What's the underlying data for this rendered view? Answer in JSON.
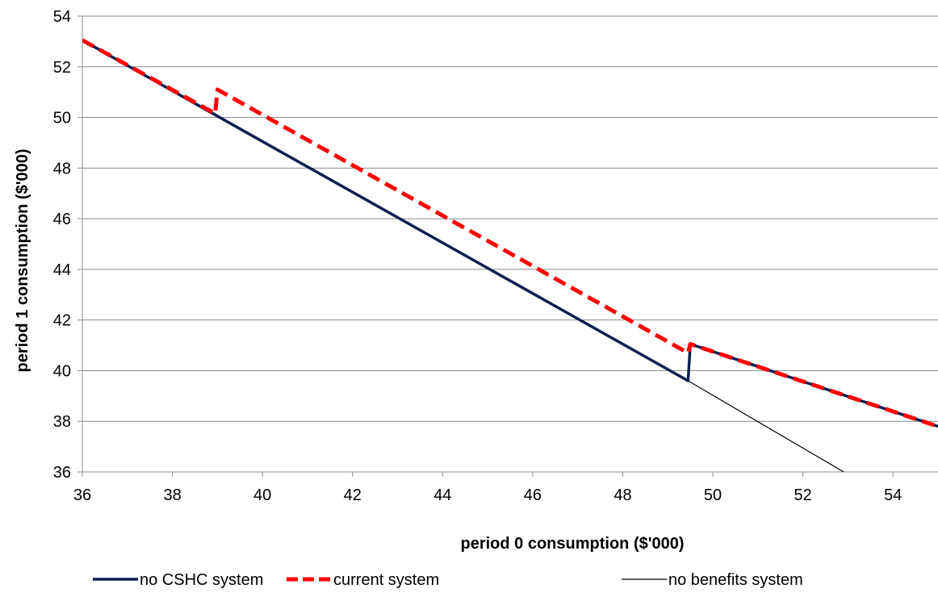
{
  "chart_data": {
    "type": "line",
    "title": "",
    "xlabel": "period 0 consumption ($'000)",
    "ylabel": "period 1 consumption ($'000)",
    "xlim": [
      36,
      55
    ],
    "ylim": [
      36,
      54
    ],
    "xticks": [
      36,
      38,
      40,
      42,
      44,
      46,
      48,
      50,
      52,
      54
    ],
    "yticks": [
      36,
      38,
      40,
      42,
      44,
      46,
      48,
      50,
      52,
      54
    ],
    "grid": "horizontal",
    "legend": "bottom",
    "series": [
      {
        "name": "no CSHC system",
        "color": "#0d1f4f",
        "style": "solid-thick",
        "points": [
          [
            36,
            53.05
          ],
          [
            49.45,
            39.6
          ],
          [
            49.5,
            41.05
          ],
          [
            55,
            37.8
          ]
        ]
      },
      {
        "name": "current system",
        "color": "#ff0000",
        "style": "dashed-thick",
        "points": [
          [
            36,
            53.05
          ],
          [
            38.95,
            50.15
          ],
          [
            39,
            51.1
          ],
          [
            49.45,
            40.7
          ],
          [
            49.5,
            41.05
          ],
          [
            55,
            37.8
          ]
        ]
      },
      {
        "name": "no benefits system",
        "color": "#000000",
        "style": "solid-thin",
        "points": [
          [
            49.45,
            39.6
          ],
          [
            53.1,
            35.8
          ]
        ]
      }
    ]
  }
}
